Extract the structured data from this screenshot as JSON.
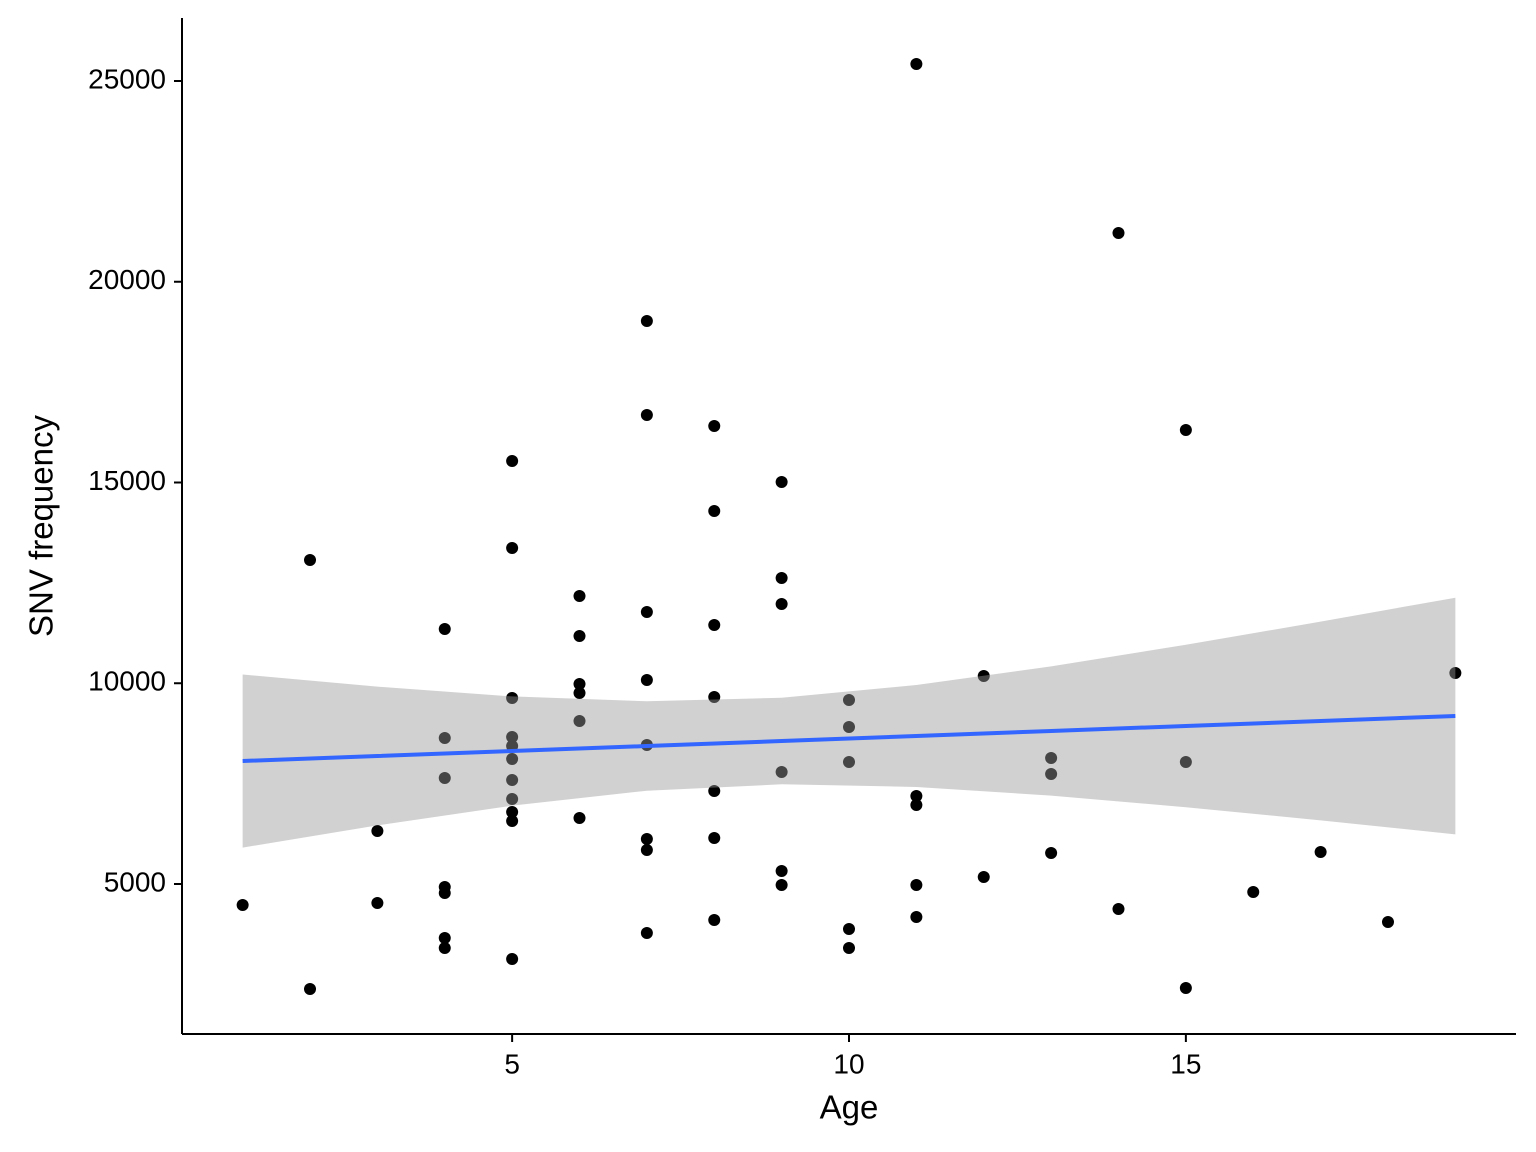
{
  "chart_data": {
    "type": "scatter",
    "x_label": "Age",
    "y_label": "SNV frequency",
    "x": [
      1,
      2,
      2,
      3,
      3,
      4,
      4,
      4,
      4,
      4,
      4,
      4,
      5,
      5,
      5,
      5,
      5,
      5,
      5,
      5,
      5,
      5,
      5,
      6,
      6,
      6,
      6,
      6,
      6,
      7,
      7,
      7,
      7,
      7,
      7,
      7,
      7,
      8,
      8,
      8,
      8,
      8,
      8,
      8,
      9,
      9,
      9,
      9,
      9,
      9,
      10,
      10,
      10,
      10,
      10,
      11,
      11,
      11,
      11,
      11,
      12,
      12,
      13,
      13,
      13,
      14,
      14,
      15,
      15,
      15,
      16,
      17,
      18,
      19
    ],
    "values": [
      4477,
      13070,
      2385,
      6320,
      4527,
      11350,
      8636,
      7640,
      4925,
      4776,
      3655,
      3406,
      15535,
      13369,
      9633,
      8661,
      8437,
      8113,
      7590,
      7117,
      6793,
      6569,
      3132,
      12173,
      11177,
      9981,
      9757,
      9060,
      6644,
      19023,
      16681,
      11775,
      10081,
      8462,
      6121,
      5847,
      3780,
      16407,
      14290,
      11451,
      9658,
      7316,
      6146,
      4103,
      15012,
      12621,
      11974,
      7790,
      5324,
      4975,
      9583,
      8910,
      8039,
      3879,
      3406,
      25423,
      7192,
      6968,
      4975,
      4178,
      10181,
      5174,
      8138,
      7740,
      5772,
      21214,
      4377,
      16308,
      8039,
      2410,
      4801,
      5797,
      4054,
      10255
    ],
    "color": "#000000",
    "fit": {
      "x": [
        1,
        3,
        5,
        7,
        9,
        11,
        13,
        15,
        17,
        19
      ],
      "values": [
        8063,
        8188,
        8312,
        8437,
        8561,
        8686,
        8811,
        8935,
        9060,
        9184
      ],
      "lower": [
        5907,
        6460,
        6952,
        7323,
        7483,
        7417,
        7202,
        6912,
        6585,
        6237
      ],
      "upper": [
        10219,
        9916,
        9672,
        9551,
        9639,
        9955,
        10420,
        10958,
        11535,
        12131
      ],
      "color": "#3366ff",
      "band_color": "#999999"
    },
    "xlim": [
      0.1,
      19.9
    ],
    "xticks": [
      5,
      10,
      15
    ],
    "ylim": [
      1264,
      26569
    ],
    "yticks": [
      5000,
      10000,
      15000,
      20000,
      25000
    ],
    "grid": false
  }
}
